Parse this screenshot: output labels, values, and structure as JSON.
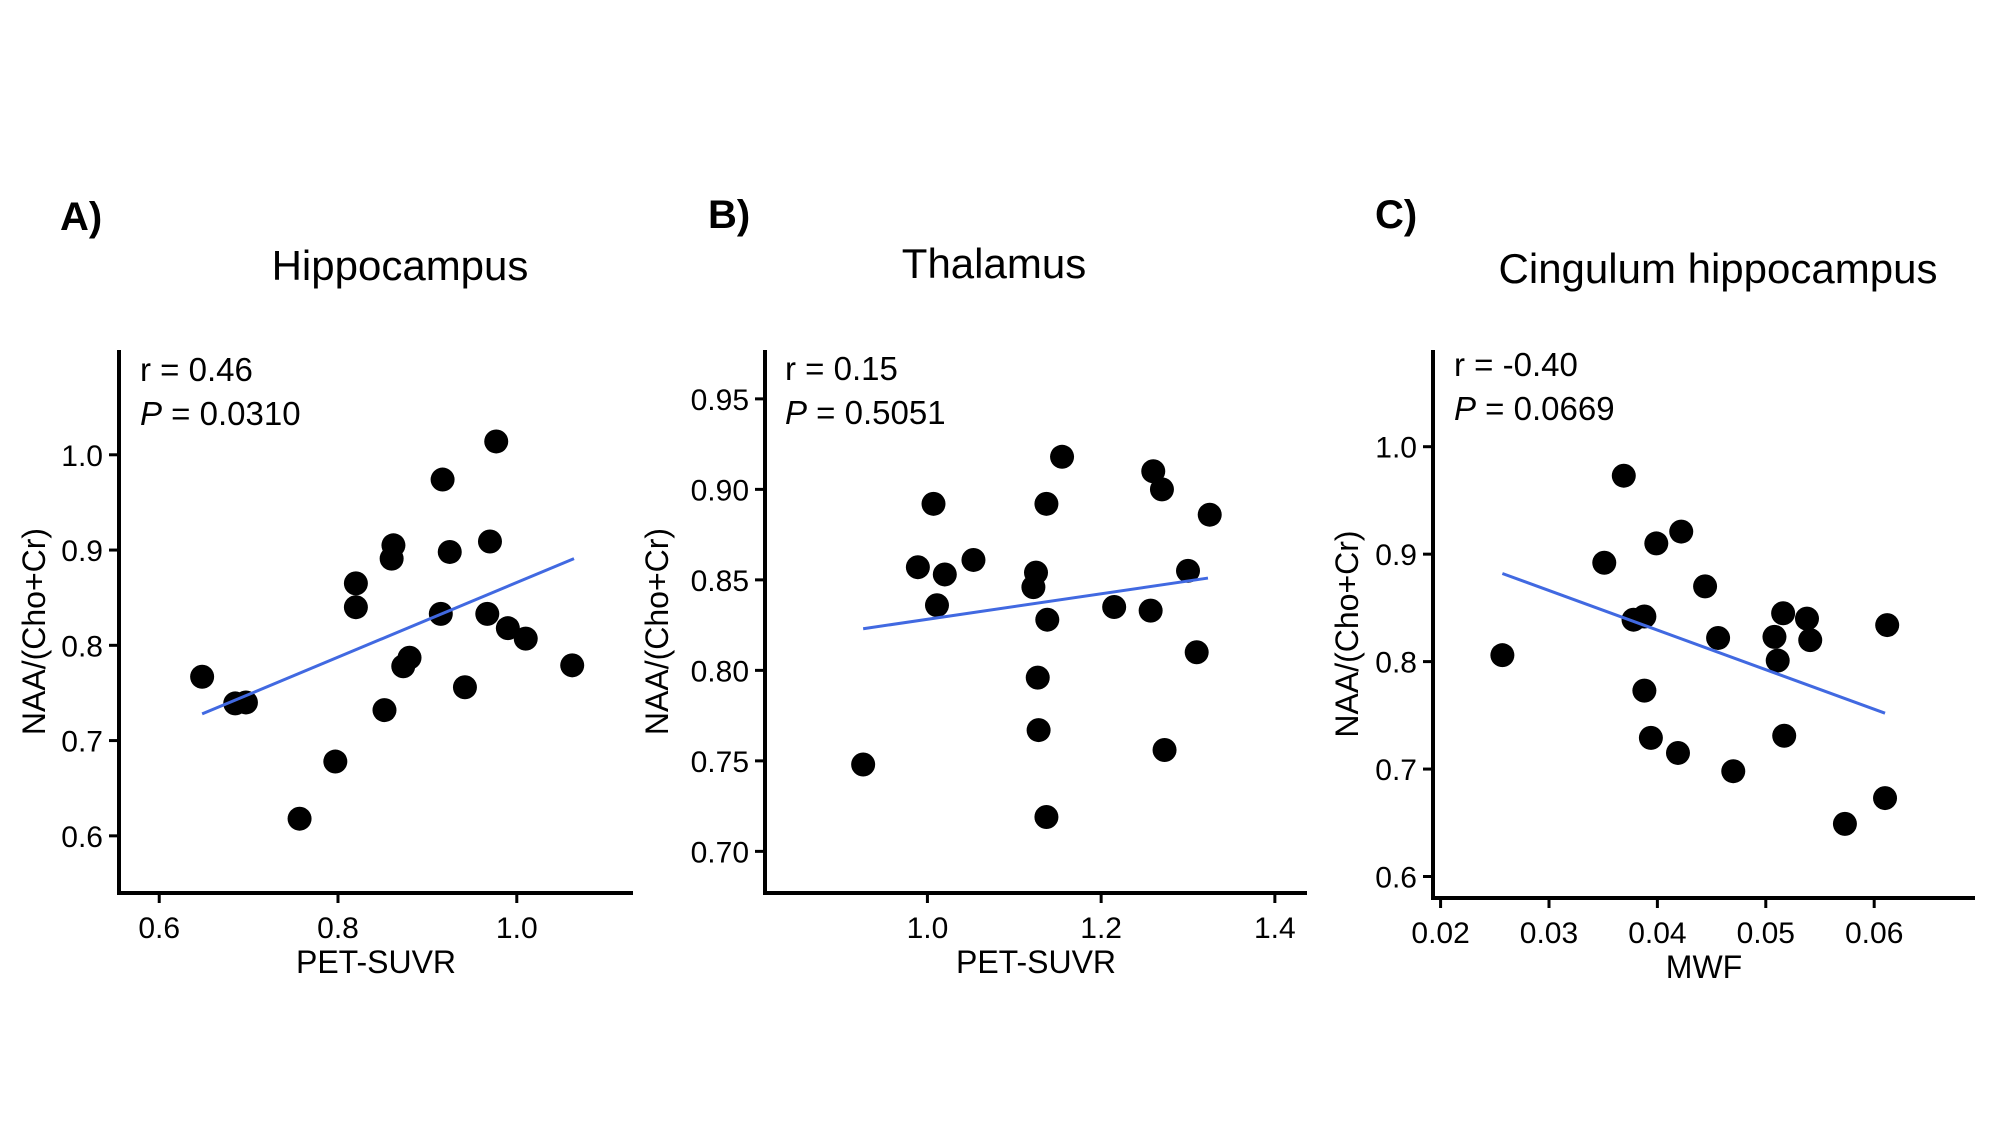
{
  "colors": {
    "point": "#000000",
    "fit_line": "#4169e1"
  },
  "chart_data": [
    {
      "type": "scatter",
      "panel_label": "A)",
      "title": "Hippocampus",
      "xlabel": "PET-SUVR",
      "ylabel": "NAA/(Cho+Cr)",
      "xlim": [
        0.555,
        1.13
      ],
      "ylim": [
        0.54,
        1.11
      ],
      "xticks": [
        0.6,
        0.8,
        1.0
      ],
      "xtick_labels": [
        "0.6",
        "0.8",
        "1.0"
      ],
      "yticks": [
        0.6,
        0.7,
        0.8,
        0.9,
        1.0
      ],
      "ytick_labels": [
        "0.6",
        "0.7",
        "0.8",
        "0.9",
        "1.0"
      ],
      "r_label": "r = 0.46",
      "p_symbol": "P",
      "p_value": " = 0.0310",
      "fit": {
        "x": [
          0.648,
          1.064
        ],
        "y": [
          0.728,
          0.891
        ]
      },
      "points": [
        {
          "x": 0.648,
          "y": 0.767
        },
        {
          "x": 0.685,
          "y": 0.739
        },
        {
          "x": 0.697,
          "y": 0.74
        },
        {
          "x": 0.757,
          "y": 0.618
        },
        {
          "x": 0.797,
          "y": 0.678
        },
        {
          "x": 0.82,
          "y": 0.865
        },
        {
          "x": 0.82,
          "y": 0.84
        },
        {
          "x": 0.852,
          "y": 0.732
        },
        {
          "x": 0.86,
          "y": 0.891
        },
        {
          "x": 0.862,
          "y": 0.905
        },
        {
          "x": 0.873,
          "y": 0.778
        },
        {
          "x": 0.88,
          "y": 0.787
        },
        {
          "x": 0.917,
          "y": 0.974
        },
        {
          "x": 0.915,
          "y": 0.833
        },
        {
          "x": 0.925,
          "y": 0.898
        },
        {
          "x": 0.942,
          "y": 0.756
        },
        {
          "x": 0.967,
          "y": 0.833
        },
        {
          "x": 0.97,
          "y": 0.909
        },
        {
          "x": 0.977,
          "y": 1.014
        },
        {
          "x": 0.99,
          "y": 0.818
        },
        {
          "x": 1.01,
          "y": 0.807
        },
        {
          "x": 1.062,
          "y": 0.779
        }
      ]
    },
    {
      "type": "scatter",
      "panel_label": "B)",
      "title": "Thalamus",
      "xlabel": "PET-SUVR",
      "ylabel": "NAA/(Cho+Cr)",
      "xlim": [
        0.813,
        1.437
      ],
      "ylim": [
        0.677,
        0.977
      ],
      "xticks": [
        1.0,
        1.2,
        1.4
      ],
      "xtick_labels": [
        "1.0",
        "1.2",
        "1.4"
      ],
      "yticks": [
        0.7,
        0.75,
        0.8,
        0.85,
        0.9,
        0.95
      ],
      "ytick_labels": [
        "0.70",
        "0.75",
        "0.80",
        "0.85",
        "0.90",
        "0.95"
      ],
      "r_label": "r = 0.15",
      "p_symbol": "P",
      "p_value": " = 0.5051",
      "fit": {
        "x": [
          0.926,
          1.323
        ],
        "y": [
          0.823,
          0.851
        ]
      },
      "points": [
        {
          "x": 0.926,
          "y": 0.748
        },
        {
          "x": 0.989,
          "y": 0.857
        },
        {
          "x": 1.007,
          "y": 0.892
        },
        {
          "x": 1.011,
          "y": 0.836
        },
        {
          "x": 1.02,
          "y": 0.853
        },
        {
          "x": 1.053,
          "y": 0.861
        },
        {
          "x": 1.122,
          "y": 0.846
        },
        {
          "x": 1.125,
          "y": 0.854
        },
        {
          "x": 1.127,
          "y": 0.796
        },
        {
          "x": 1.128,
          "y": 0.767
        },
        {
          "x": 1.137,
          "y": 0.892
        },
        {
          "x": 1.138,
          "y": 0.828
        },
        {
          "x": 1.137,
          "y": 0.719
        },
        {
          "x": 1.155,
          "y": 0.918
        },
        {
          "x": 1.215,
          "y": 0.835
        },
        {
          "x": 1.257,
          "y": 0.833
        },
        {
          "x": 1.26,
          "y": 0.91
        },
        {
          "x": 1.27,
          "y": 0.9
        },
        {
          "x": 1.273,
          "y": 0.756
        },
        {
          "x": 1.3,
          "y": 0.855
        },
        {
          "x": 1.31,
          "y": 0.81
        },
        {
          "x": 1.325,
          "y": 0.886
        }
      ]
    },
    {
      "type": "scatter",
      "panel_label": "C)",
      "title": "Cingulum hippocampus",
      "xlabel": "MWF",
      "ylabel": "NAA/(Cho+Cr)",
      "xlim": [
        0.0193,
        0.0693
      ],
      "ylim": [
        0.58,
        1.09
      ],
      "xticks": [
        0.02,
        0.03,
        0.04,
        0.05,
        0.06
      ],
      "xtick_labels": [
        "0.02",
        "0.03",
        "0.04",
        "0.05",
        "0.06"
      ],
      "yticks": [
        0.6,
        0.7,
        0.8,
        0.9,
        1.0
      ],
      "ytick_labels": [
        "0.6",
        "0.7",
        "0.8",
        "0.9",
        "1.0"
      ],
      "r_label": "r = -0.40",
      "p_symbol": "P",
      "p_value": " = 0.0669",
      "fit": {
        "x": [
          0.0257,
          0.061
        ],
        "y": [
          0.882,
          0.752
        ]
      },
      "points": [
        {
          "x": 0.0257,
          "y": 0.806
        },
        {
          "x": 0.0351,
          "y": 0.892
        },
        {
          "x": 0.0369,
          "y": 0.973
        },
        {
          "x": 0.0378,
          "y": 0.839
        },
        {
          "x": 0.0388,
          "y": 0.842
        },
        {
          "x": 0.0388,
          "y": 0.773
        },
        {
          "x": 0.0394,
          "y": 0.729
        },
        {
          "x": 0.0399,
          "y": 0.91
        },
        {
          "x": 0.0419,
          "y": 0.715
        },
        {
          "x": 0.0422,
          "y": 0.921
        },
        {
          "x": 0.0444,
          "y": 0.87
        },
        {
          "x": 0.0456,
          "y": 0.822
        },
        {
          "x": 0.047,
          "y": 0.698
        },
        {
          "x": 0.0508,
          "y": 0.823
        },
        {
          "x": 0.0511,
          "y": 0.801
        },
        {
          "x": 0.0516,
          "y": 0.845
        },
        {
          "x": 0.0517,
          "y": 0.731
        },
        {
          "x": 0.0538,
          "y": 0.84
        },
        {
          "x": 0.0541,
          "y": 0.82
        },
        {
          "x": 0.0573,
          "y": 0.649
        },
        {
          "x": 0.061,
          "y": 0.673
        },
        {
          "x": 0.0612,
          "y": 0.834
        }
      ]
    }
  ]
}
